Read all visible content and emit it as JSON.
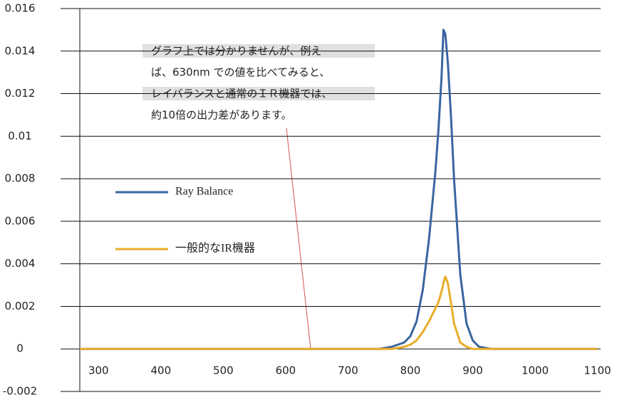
{
  "chart_data": {
    "type": "line",
    "x": [
      270,
      750,
      770,
      790,
      800,
      810,
      820,
      830,
      840,
      845,
      850,
      853,
      856,
      860,
      865,
      870,
      880,
      890,
      900,
      910,
      930,
      1100
    ],
    "series": [
      {
        "name": "Ray Balance",
        "color": "#3a65a0",
        "values": [
          0,
          0,
          0.0001,
          0.0003,
          0.0006,
          0.0013,
          0.0028,
          0.0052,
          0.0083,
          0.0103,
          0.0128,
          0.015,
          0.0148,
          0.0135,
          0.011,
          0.008,
          0.0035,
          0.0012,
          0.0004,
          0.0001,
          0,
          0
        ]
      },
      {
        "name": "一般的なIR機器",
        "color": "#e8ad2a",
        "values": [
          0,
          0,
          0,
          0.0001,
          0.0002,
          0.0004,
          0.0008,
          0.0013,
          0.0019,
          0.0022,
          0.0027,
          0.0031,
          0.0034,
          0.0031,
          0.0022,
          0.0012,
          0.0003,
          0.0001,
          0,
          0,
          0,
          0
        ]
      }
    ],
    "xlim": [
      270,
      1105
    ],
    "xticks": [
      300,
      400,
      500,
      600,
      700,
      800,
      900,
      1000,
      1100
    ],
    "ylim": [
      -0.002,
      0.016
    ],
    "yticks": [
      -0.002,
      0,
      0.002,
      0.004,
      0.006,
      0.008,
      0.01,
      0.012,
      0.014,
      0.016
    ],
    "grid": true,
    "legend": "left",
    "annotation": [
      "グラフ上では分かりませんが、例え",
      "ば、630nm での値を比べてみると、",
      "レイバランスと通常のＩＲ機器では、",
      "約10倍の出力差があります。"
    ]
  }
}
